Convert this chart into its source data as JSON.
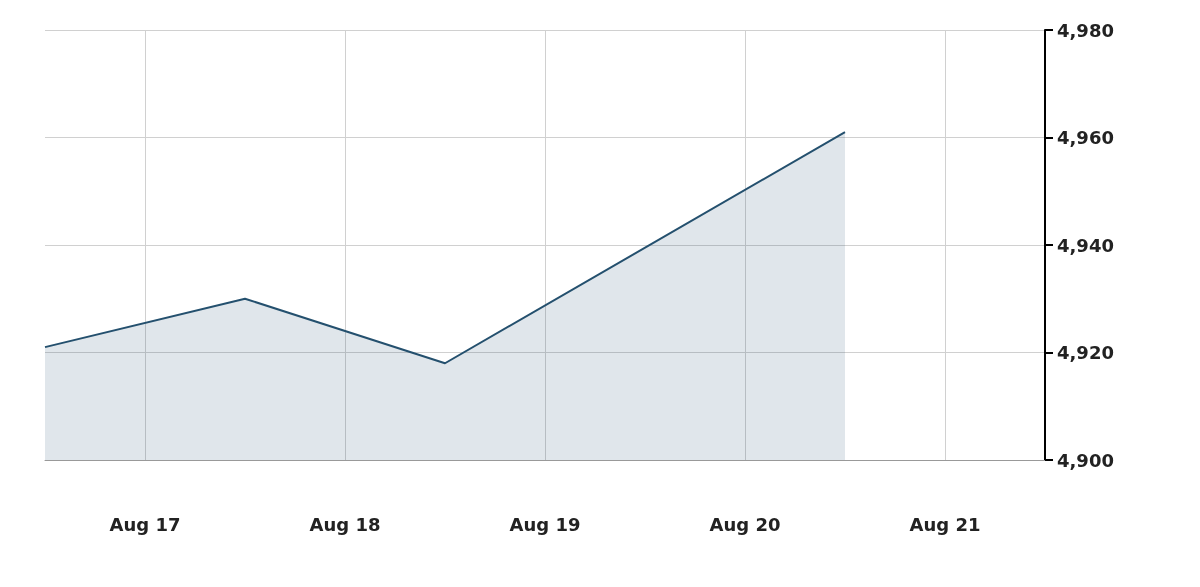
{
  "chart_data": {
    "type": "area",
    "x": [
      "--08-16T12:00",
      "--08-17T12:00",
      "--08-18T12:00",
      "--08-20T12:00"
    ],
    "series": [
      {
        "color": "#24506e",
        "values": [
          4921,
          4930,
          4918,
          4961
        ]
      }
    ],
    "xlim": [
      "--08-16T12:00",
      "--08-21T12:00"
    ],
    "xticks": [
      {
        "value": "--08-17",
        "label": "Aug 17"
      },
      {
        "value": "--08-18",
        "label": "Aug 18"
      },
      {
        "value": "--08-19",
        "label": "Aug 19"
      },
      {
        "value": "--08-20",
        "label": "Aug 20"
      },
      {
        "value": "--08-21",
        "label": "Aug 21"
      }
    ],
    "ylim": [
      4900,
      4980
    ],
    "yticks": [
      {
        "value": 4900,
        "label": "4,900"
      },
      {
        "value": 4920,
        "label": "4,920"
      },
      {
        "value": 4940,
        "label": "4,940"
      },
      {
        "value": 4960,
        "label": "4,960"
      },
      {
        "value": 4980,
        "label": "4,980"
      }
    ],
    "grid": true,
    "marker": "none"
  }
}
